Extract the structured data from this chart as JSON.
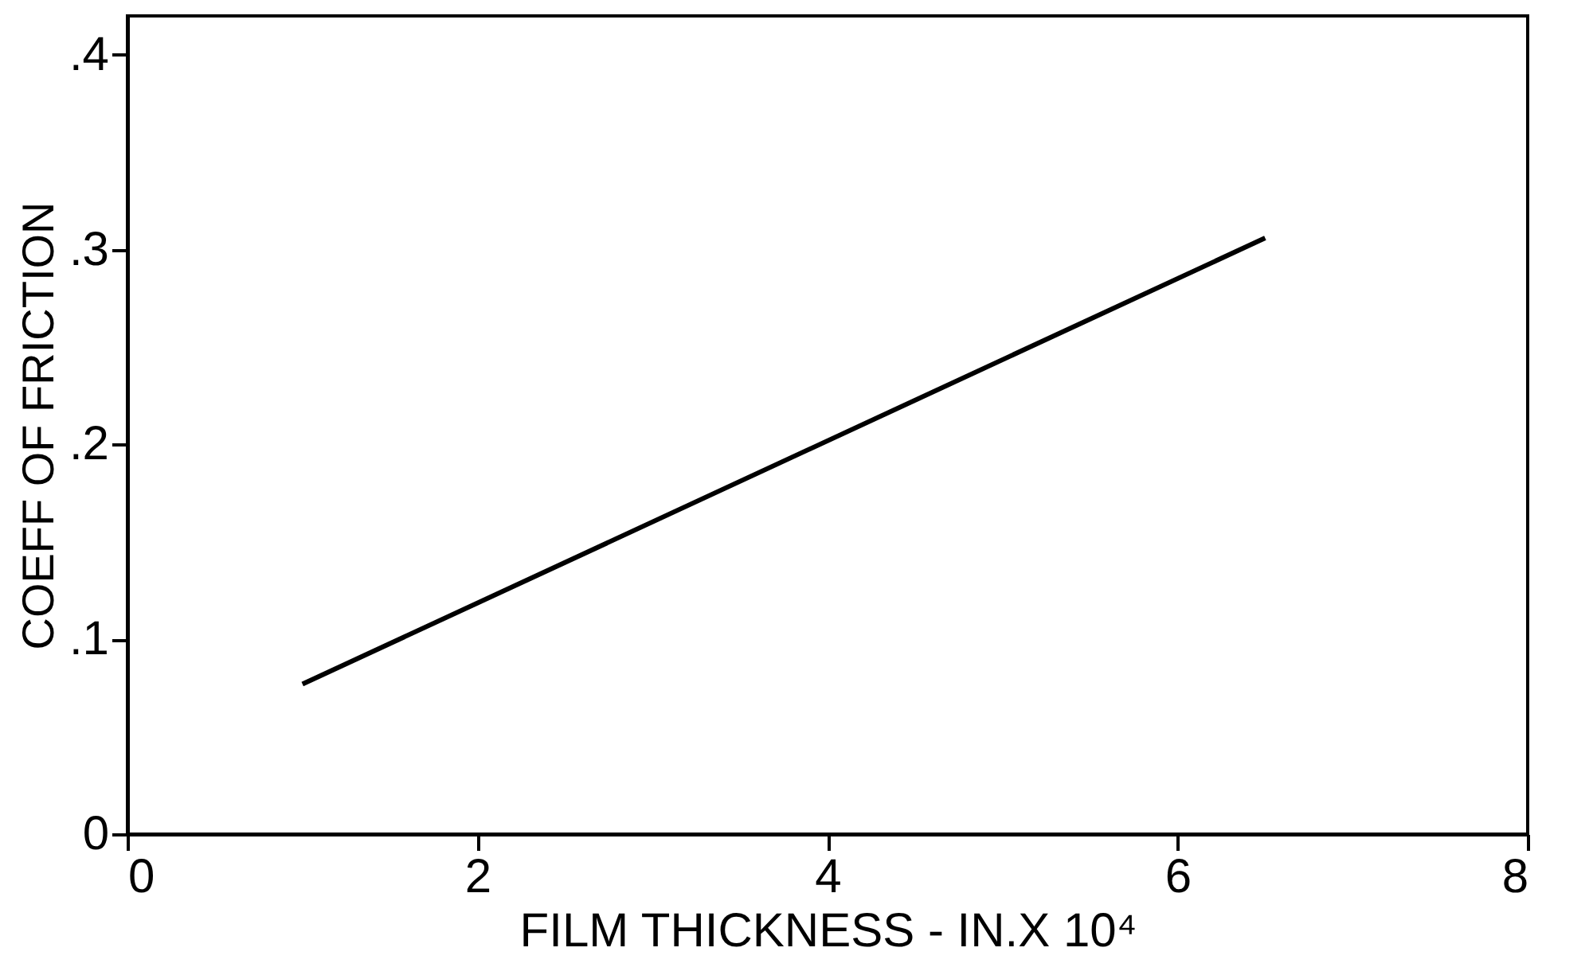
{
  "chart_data": {
    "type": "line",
    "xlabel": "FILM THICKNESS - IN.X 10⁴",
    "ylabel": "COEFF OF FRICTION",
    "x": [
      1,
      6.5
    ],
    "series": [
      {
        "color": "#000000",
        "values": [
          0.077,
          0.306
        ]
      }
    ],
    "xlim": [
      0,
      8
    ],
    "xticks": [
      0,
      2,
      4,
      6,
      8
    ],
    "ylim": [
      0,
      0.42
    ],
    "yticks": [
      {
        "value": 0,
        "label": "0"
      },
      {
        "value": 0.1,
        "label": ".1"
      },
      {
        "value": 0.2,
        "label": ".2"
      },
      {
        "value": 0.3,
        "label": ".3"
      },
      {
        "value": 0.4,
        "label": ".4"
      }
    ],
    "grid": false,
    "marker": "none",
    "line_style": "solid"
  }
}
